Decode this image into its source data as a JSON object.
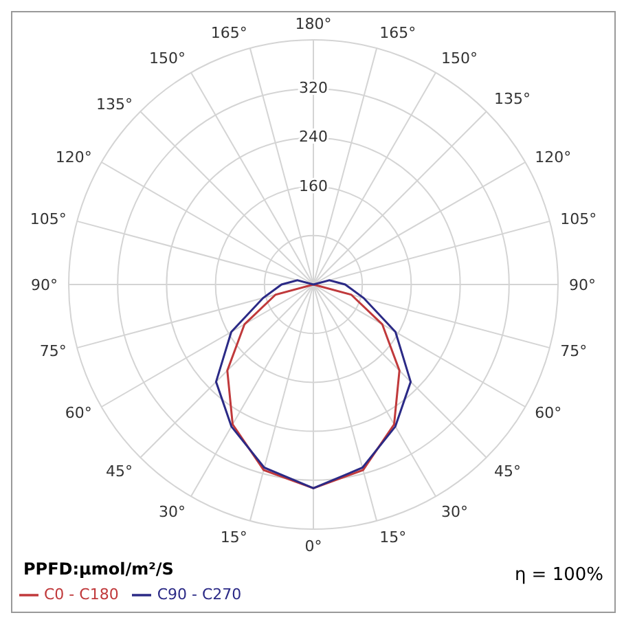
{
  "chart_data": {
    "type": "radar",
    "ylabel": "PPFD:µmol/m²/S",
    "annotations": [
      "η = 100%"
    ],
    "categories": [
      "180°",
      "165°",
      "150°",
      "135°",
      "120°",
      "105°",
      "90°",
      "75°",
      "60°",
      "45°",
      "30°",
      "15°",
      "0°",
      "15°",
      "30°",
      "45°",
      "60°",
      "75°",
      "90°",
      "105°",
      "120°",
      "135°",
      "150°",
      "165°"
    ],
    "series": [
      {
        "name": "C0 - C180",
        "color": "#c0393b",
        "values": [
          0,
          0,
          0,
          0,
          0,
          0,
          0,
          64,
          130,
          199,
          264,
          314,
          333,
          314,
          264,
          199,
          130,
          64,
          0,
          0,
          0,
          0,
          0,
          0
        ]
      },
      {
        "name": "C90 - C270",
        "color": "#2b2a86",
        "values": [
          0,
          0,
          0,
          0,
          0,
          27,
          52,
          85,
          155,
          225,
          268,
          310,
          333,
          310,
          268,
          225,
          155,
          85,
          52,
          27,
          0,
          0,
          0,
          0
        ]
      }
    ],
    "ylim": [
      0,
      400
    ],
    "yticks": [
      160,
      240,
      320
    ],
    "grid": true,
    "legend": "bottom"
  }
}
